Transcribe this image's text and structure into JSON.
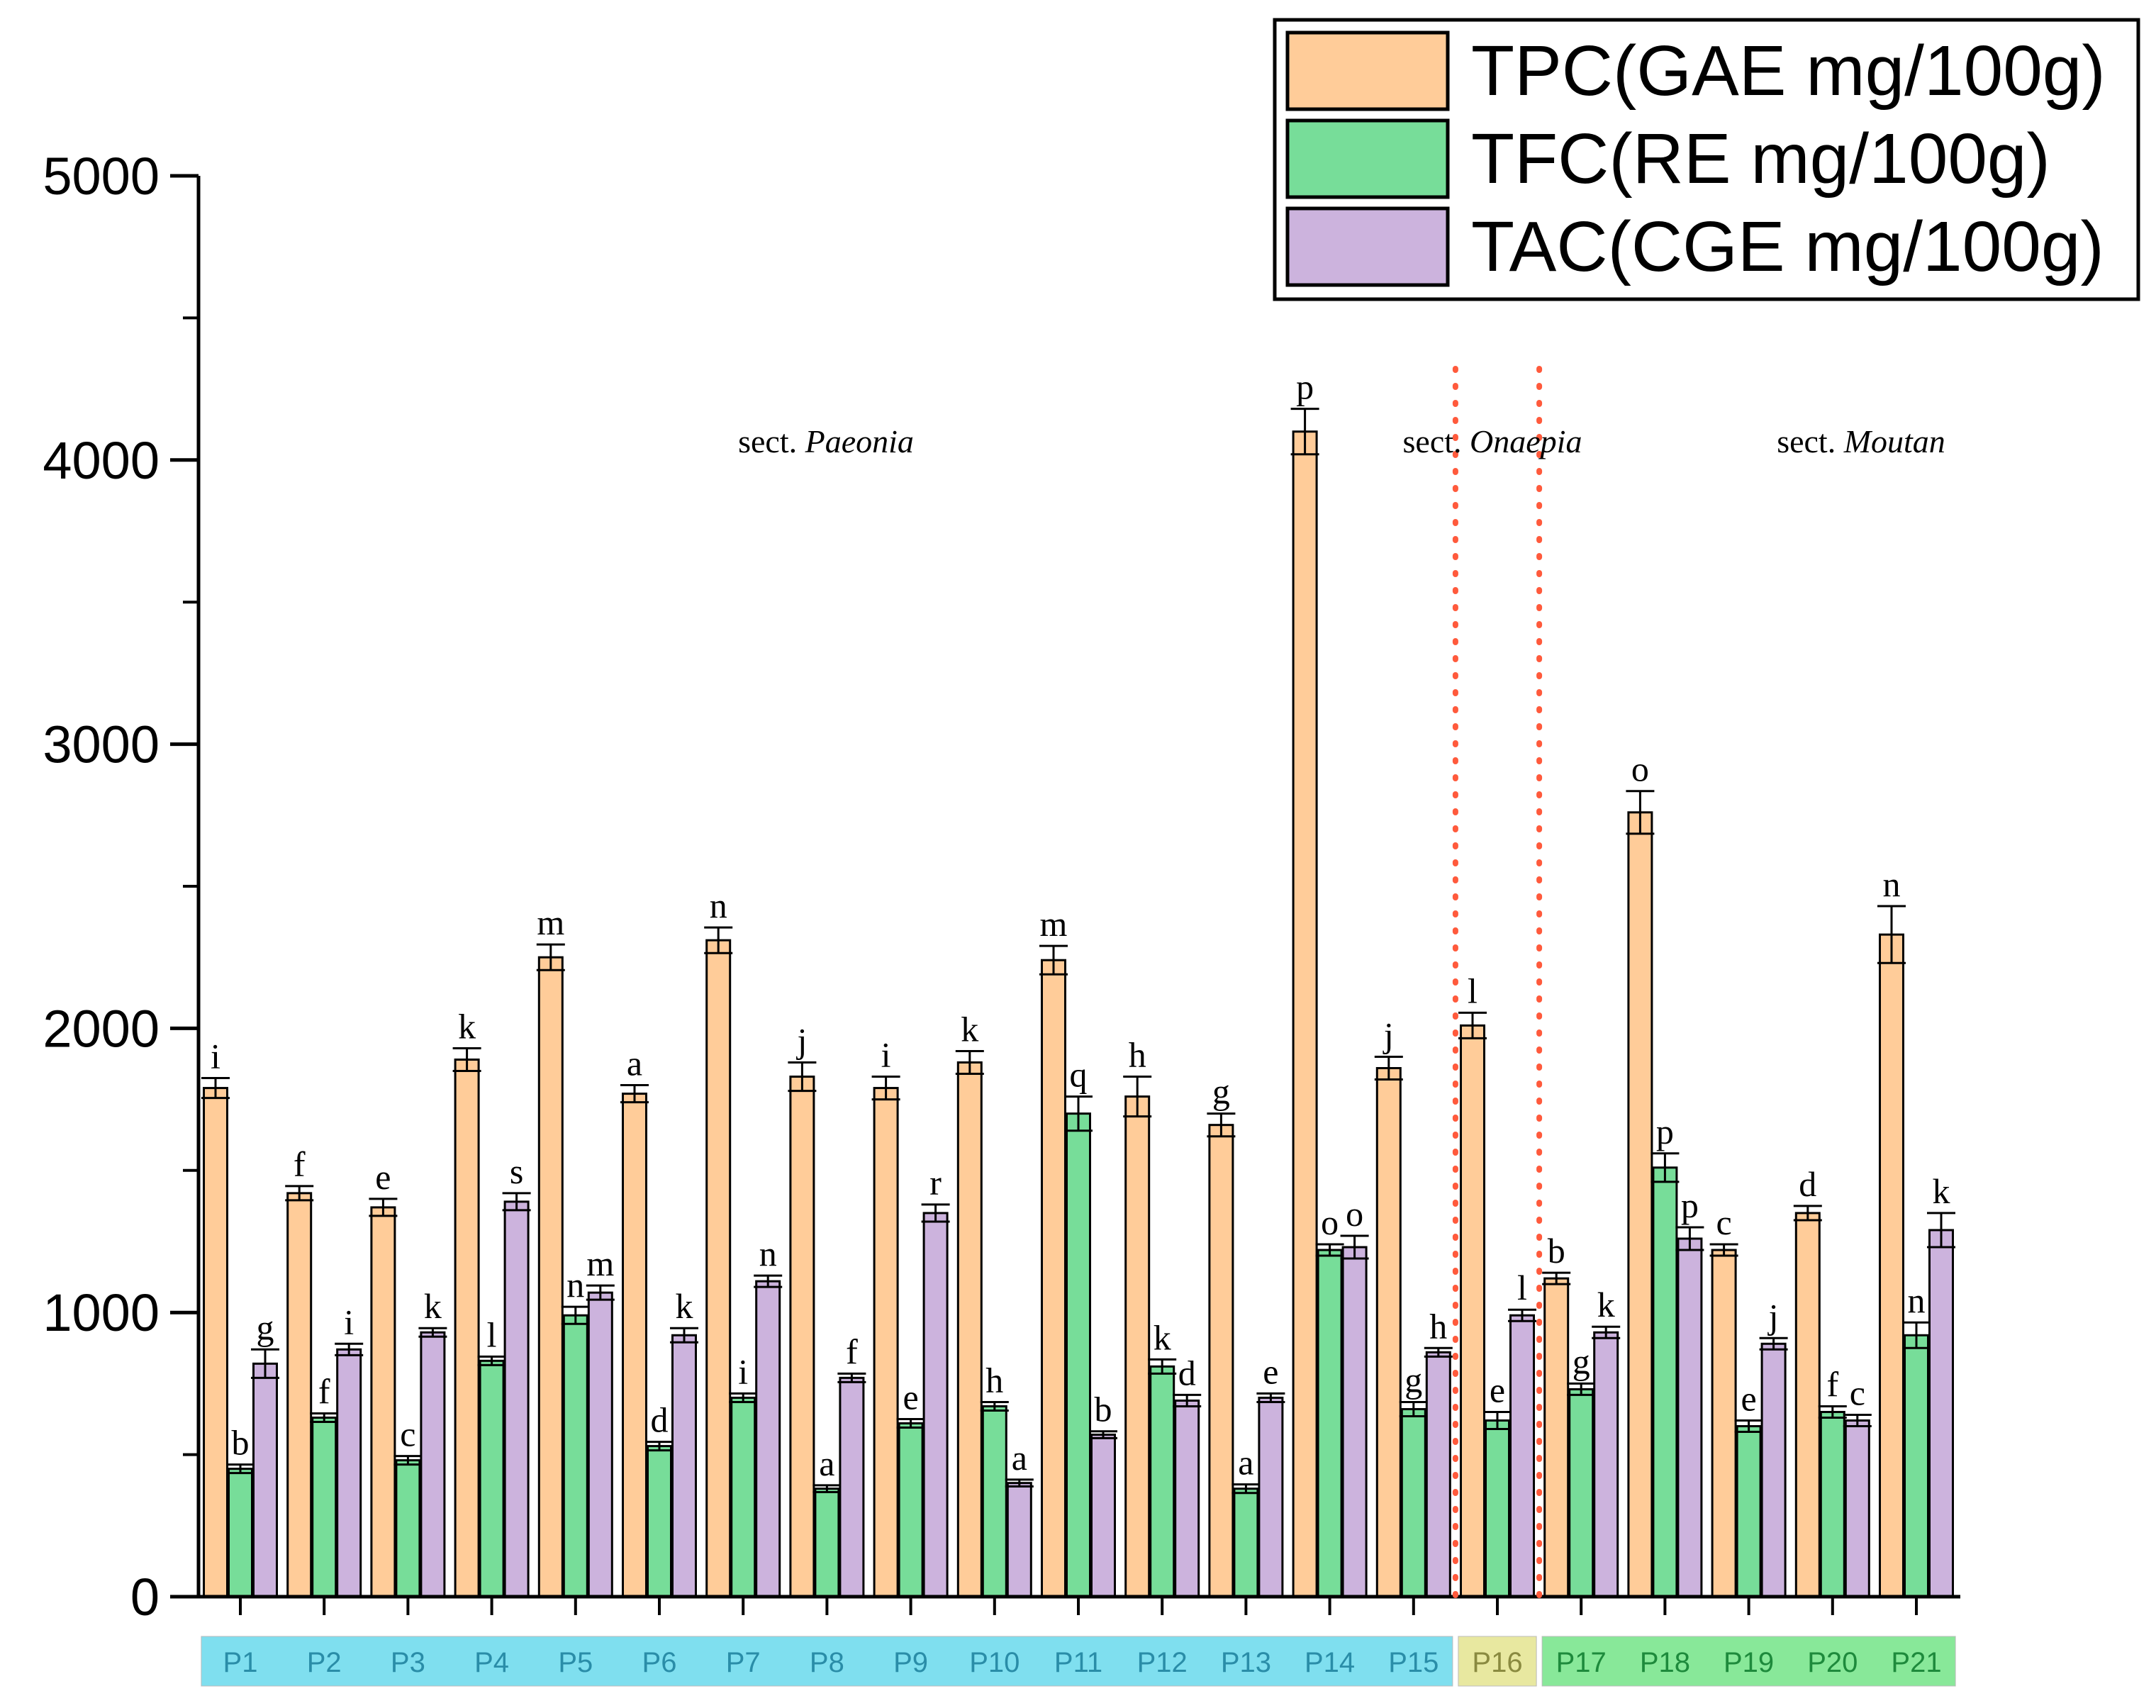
{
  "chart_data": {
    "type": "bar",
    "categories": [
      "P1",
      "P2",
      "P3",
      "P4",
      "P5",
      "P6",
      "P7",
      "P8",
      "P9",
      "P10",
      "P11",
      "P12",
      "P13",
      "P14",
      "P15",
      "P16",
      "P17",
      "P18",
      "P19",
      "P20",
      "P21"
    ],
    "ylim": [
      0,
      5000
    ],
    "yticks": [
      0,
      1000,
      2000,
      3000,
      4000,
      5000
    ],
    "legend_position": "top-right",
    "grid": false,
    "series": [
      {
        "name": "TPC(GAE mg/100g)",
        "color": "#FFCC99",
        "values": [
          1790,
          1420,
          1370,
          1890,
          2250,
          1770,
          2310,
          1830,
          1790,
          1880,
          2240,
          1760,
          1660,
          4100,
          1860,
          2010,
          1120,
          2760,
          1220,
          1350,
          2330
        ],
        "errors": [
          35,
          25,
          30,
          40,
          45,
          30,
          45,
          50,
          40,
          40,
          50,
          70,
          40,
          80,
          40,
          45,
          20,
          75,
          20,
          25,
          100
        ],
        "letters": [
          "i",
          "f",
          "e",
          "k",
          "m",
          "a",
          "n",
          "j",
          "i",
          "k",
          "m",
          "h",
          "g",
          "p",
          "j",
          "l",
          "b",
          "o",
          "c",
          "d",
          "n"
        ]
      },
      {
        "name": "TFC(RE mg/100g)",
        "color": "#77DD99",
        "values": [
          450,
          630,
          480,
          830,
          990,
          530,
          700,
          380,
          610,
          670,
          1700,
          810,
          380,
          1220,
          660,
          620,
          730,
          1510,
          600,
          650,
          920
        ],
        "errors": [
          15,
          15,
          15,
          15,
          30,
          15,
          15,
          12,
          15,
          15,
          60,
          25,
          15,
          20,
          25,
          30,
          20,
          50,
          20,
          20,
          45
        ],
        "letters": [
          "b",
          "f",
          "c",
          "l",
          "n",
          "d",
          "i",
          "a",
          "e",
          "h",
          "q",
          "k",
          "a",
          "o",
          "g",
          "e",
          "g",
          "p",
          "e",
          "f",
          "n"
        ]
      },
      {
        "name": "TAC(CGE mg/100g)",
        "color": "#CCB3DD",
        "values": [
          820,
          870,
          930,
          1390,
          1070,
          920,
          1110,
          770,
          1350,
          400,
          570,
          690,
          700,
          1230,
          860,
          990,
          930,
          1260,
          890,
          620,
          1290
        ],
        "errors": [
          50,
          20,
          15,
          30,
          25,
          25,
          20,
          15,
          30,
          12,
          12,
          20,
          15,
          40,
          15,
          20,
          20,
          40,
          20,
          20,
          60
        ],
        "letters": [
          "g",
          "i",
          "k",
          "s",
          "m",
          "k",
          "n",
          "f",
          "r",
          "a",
          "b",
          "d",
          "e",
          "o",
          "h",
          "l",
          "k",
          "p",
          "j",
          "c",
          "k"
        ]
      }
    ],
    "sections": [
      {
        "prefix": "sect. ",
        "name": "Paeonia",
        "color": "#7FDFEF",
        "from": "P1",
        "to": "P15"
      },
      {
        "prefix": "sect. ",
        "name": "Onaepia",
        "color": "#E8E8A0",
        "from": "P16",
        "to": "P16"
      },
      {
        "prefix": "sect. ",
        "name": "Moutan",
        "color": "#88E899",
        "from": "P17",
        "to": "P21"
      }
    ],
    "separator_color": "#FF5A3C"
  }
}
